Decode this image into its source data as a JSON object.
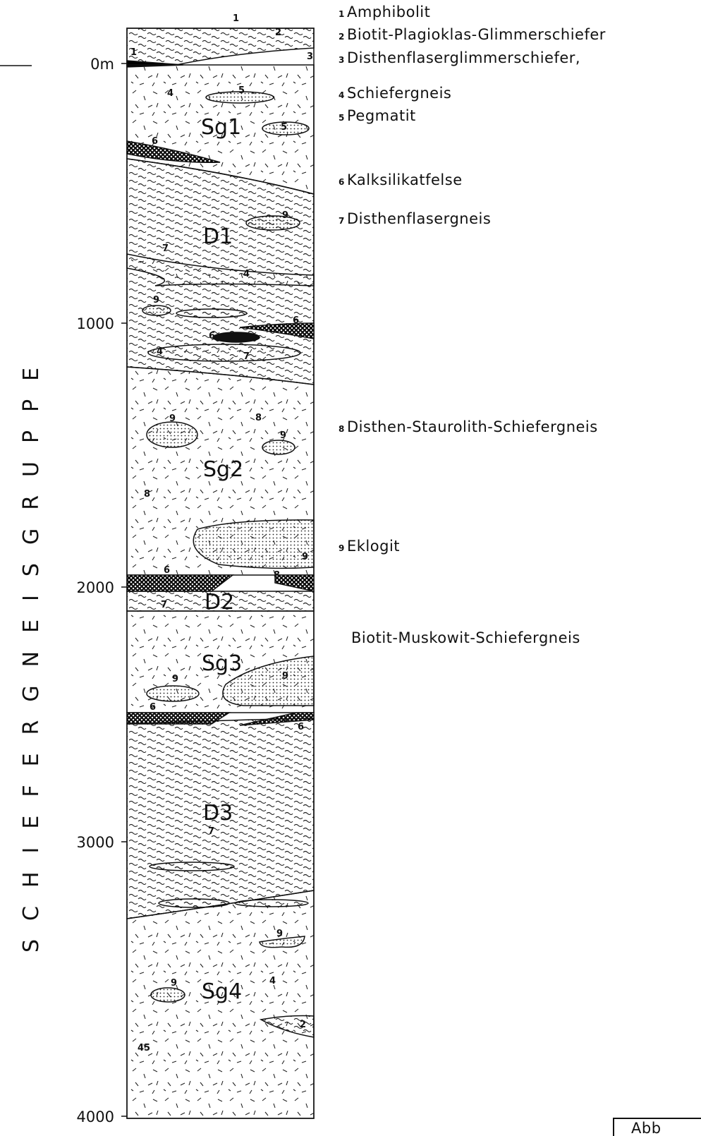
{
  "depth_labels": [
    "0m",
    "1000",
    "2000",
    "3000",
    "4000"
  ],
  "group_label": "SCHIEFERGNEISGRUPPE",
  "legend": [
    {
      "num": "1",
      "text": "Amphibolit"
    },
    {
      "num": "2",
      "text": "Biotit-Plagioklas-Glimmerschiefer"
    },
    {
      "num": "3",
      "text": "Disthenflaserglimmerschiefer,"
    },
    {
      "num": "4",
      "text": "Schiefergneis"
    },
    {
      "num": "5",
      "text": "Pegmatit"
    },
    {
      "num": "6",
      "text": "Kalksilikatfelse"
    },
    {
      "num": "7",
      "text": "Disthenflasergneis"
    },
    {
      "num": "8",
      "text": "Disthen-Staurolith-Schiefergneis"
    },
    {
      "num": "9",
      "text": "Eklogit"
    }
  ],
  "extra_legend": "Biotit-Muskowit-Schiefergneis",
  "column_labels": [
    "1",
    "2",
    "1",
    "3",
    "4",
    "5",
    "Sg1",
    "5",
    "6",
    "9",
    "D1",
    "7",
    "4",
    "9",
    "6",
    "6",
    "4",
    "7",
    "9",
    "8",
    "9",
    "Sg2",
    "8",
    "9",
    "6",
    "8",
    "7",
    "D2",
    "Sg3",
    "9",
    "9",
    "6",
    "6",
    "D3",
    "7",
    "9",
    "9",
    "Sg4",
    "4",
    "2",
    "45"
  ],
  "corner_label": "Abb"
}
